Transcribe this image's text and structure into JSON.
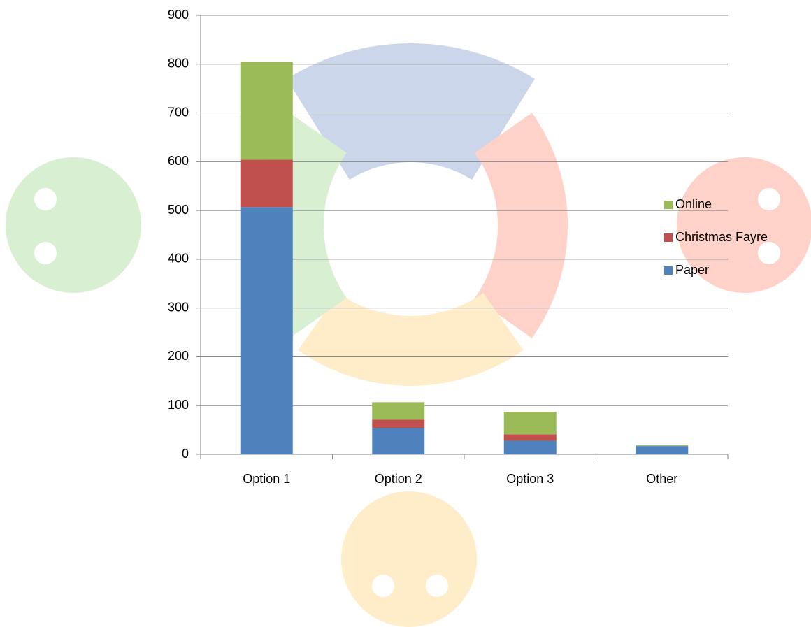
{
  "chart_data": {
    "type": "stacked_bar",
    "categories": [
      "Option 1",
      "Option 2",
      "Option 3",
      "Other"
    ],
    "series": [
      {
        "name": "Paper",
        "color": "#4f81bd",
        "values": [
          507,
          54,
          28,
          17
        ]
      },
      {
        "name": "Christmas Fayre",
        "color": "#c0504d",
        "values": [
          97,
          17,
          13,
          0
        ]
      },
      {
        "name": "Online",
        "color": "#9bbb59",
        "values": [
          201,
          36,
          46,
          2
        ]
      }
    ],
    "ylim": [
      0,
      900
    ],
    "yticks": [
      0,
      100,
      200,
      300,
      400,
      500,
      600,
      700,
      800,
      900
    ],
    "grid": true,
    "legend": "right"
  }
}
